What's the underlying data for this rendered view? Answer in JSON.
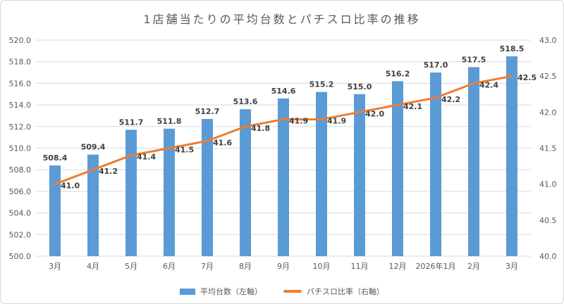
{
  "chart_data": {
    "type": "combo",
    "title": "1店舗当たりの平均台数とパチスロ比率の推移",
    "categories": [
      "3月",
      "4月",
      "5月",
      "6月",
      "7月",
      "8月",
      "9月",
      "10月",
      "11月",
      "12月",
      "2026年1月",
      "2月",
      "3月"
    ],
    "series": [
      {
        "name": "平均台数（左軸）",
        "type": "bar",
        "axis": "left",
        "color": "#5B9BD5",
        "values": [
          508.4,
          509.4,
          511.7,
          511.8,
          512.7,
          513.6,
          514.6,
          515.2,
          515.0,
          516.2,
          517.0,
          517.5,
          518.5
        ]
      },
      {
        "name": "パチスロ比率（右軸）",
        "type": "line",
        "axis": "right",
        "color": "#ED7D31",
        "values": [
          41.0,
          41.2,
          41.4,
          41.5,
          41.6,
          41.8,
          41.9,
          41.9,
          42.0,
          42.1,
          42.2,
          42.4,
          42.5
        ]
      }
    ],
    "left_axis": {
      "min": 500,
      "max": 520,
      "step": 2,
      "ticks": [
        "500.0",
        "502.0",
        "504.0",
        "506.0",
        "508.0",
        "510.0",
        "512.0",
        "514.0",
        "516.0",
        "518.0",
        "520.0"
      ]
    },
    "right_axis": {
      "min": 40,
      "max": 43,
      "step": 0.5,
      "ticks": [
        "40.0",
        "40.5",
        "41.0",
        "41.5",
        "42.0",
        "42.5",
        "43.0"
      ]
    },
    "grid": true,
    "grid_color": "#D9D9D9",
    "data_labels": true,
    "legend_position": "bottom",
    "title_color": "#595959",
    "tick_color": "#595959",
    "data_label_color": "#404040"
  }
}
